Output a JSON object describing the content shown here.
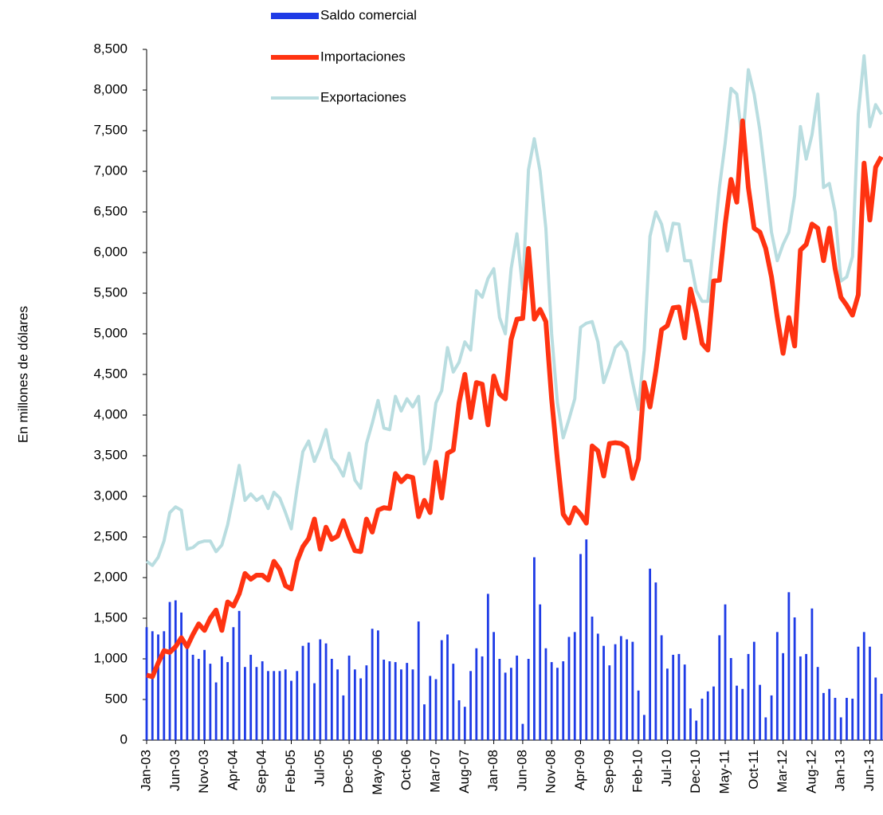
{
  "chart_data": {
    "type": "combo",
    "y_label": "En millones de dólares",
    "categories": [
      "Jan-03",
      null,
      null,
      null,
      null,
      "Jun-03",
      null,
      null,
      null,
      null,
      "Nov-03",
      null,
      null,
      null,
      null,
      "Apr-04",
      null,
      null,
      null,
      null,
      "Sep-04",
      null,
      null,
      null,
      null,
      "Feb-05",
      null,
      null,
      null,
      null,
      "Jul-05",
      null,
      null,
      null,
      null,
      "Dec-05",
      null,
      null,
      null,
      null,
      "May-06",
      null,
      null,
      null,
      null,
      "Oct-06",
      null,
      null,
      null,
      null,
      "Mar-07",
      null,
      null,
      null,
      null,
      "Aug-07",
      null,
      null,
      null,
      null,
      "Jan-08",
      null,
      null,
      null,
      null,
      "Jun-08",
      null,
      null,
      null,
      null,
      "Nov-08",
      null,
      null,
      null,
      null,
      "Apr-09",
      null,
      null,
      null,
      null,
      "Sep-09",
      null,
      null,
      null,
      null,
      "Feb-10",
      null,
      null,
      null,
      null,
      "Jul-10",
      null,
      null,
      null,
      null,
      "Dec-10",
      null,
      null,
      null,
      null,
      "May-11",
      null,
      null,
      null,
      null,
      "Oct-11",
      null,
      null,
      null,
      null,
      "Mar-12",
      null,
      null,
      null,
      null,
      "Aug-12",
      null,
      null,
      null,
      null,
      "Jan-13",
      null,
      null,
      null,
      null,
      "Jun-13",
      null,
      null
    ],
    "series": [
      {
        "name": "Saldo comercial",
        "type": "bar",
        "color": "#1e3be6",
        "values": [
          1390,
          1340,
          1300,
          1340,
          1700,
          1720,
          1570,
          1200,
          1050,
          1000,
          1110,
          940,
          710,
          1030,
          960,
          1390,
          1590,
          900,
          1050,
          900,
          970,
          850,
          850,
          850,
          870,
          730,
          850,
          1160,
          1200,
          700,
          1240,
          1190,
          1000,
          870,
          550,
          1040,
          870,
          760,
          920,
          1370,
          1350,
          990,
          970,
          960,
          870,
          950,
          870,
          1460,
          440,
          790,
          750,
          1230,
          1300,
          940,
          490,
          410,
          850,
          1130,
          1030,
          1800,
          1330,
          1000,
          830,
          890,
          1040,
          200,
          1000,
          2250,
          1670,
          1130,
          960,
          890,
          970,
          1270,
          1330,
          2290,
          2470,
          1520,
          1310,
          1160,
          920,
          1180,
          1280,
          1240,
          1210,
          610,
          310,
          2110,
          1940,
          1290,
          880,
          1050,
          1060,
          930,
          390,
          240,
          510,
          600,
          660,
          1290,
          1670,
          1010,
          670,
          630,
          1060,
          1210,
          680,
          280,
          550,
          1330,
          1070,
          1820,
          1510,
          1030,
          1060,
          1620,
          900,
          580,
          630,
          520,
          280,
          520,
          510,
          1150,
          1330,
          1150,
          770,
          570
        ]
      },
      {
        "name": "Importaciones",
        "type": "line",
        "color": "#ff3311",
        "values": [
          800,
          780,
          950,
          1100,
          1080,
          1150,
          1260,
          1150,
          1300,
          1430,
          1350,
          1500,
          1600,
          1350,
          1700,
          1650,
          1800,
          2050,
          1980,
          2030,
          2030,
          1970,
          2200,
          2100,
          1900,
          1860,
          2200,
          2380,
          2480,
          2720,
          2350,
          2620,
          2470,
          2510,
          2700,
          2500,
          2330,
          2320,
          2720,
          2560,
          2830,
          2860,
          2850,
          3280,
          3180,
          3250,
          3230,
          2750,
          2950,
          2800,
          3420,
          2980,
          3530,
          3570,
          4150,
          4500,
          3970,
          4400,
          4380,
          3880,
          4480,
          4260,
          4200,
          4930,
          5180,
          5190,
          6050,
          5180,
          5300,
          5150,
          4200,
          3450,
          2780,
          2670,
          2860,
          2780,
          2670,
          3620,
          3560,
          3250,
          3650,
          3660,
          3650,
          3600,
          3220,
          3460,
          4400,
          4100,
          4540,
          5050,
          5100,
          5320,
          5330,
          4950,
          5550,
          5260,
          4880,
          4800,
          5650,
          5660,
          6350,
          6900,
          6620,
          7620,
          6800,
          6300,
          6250,
          6050,
          5700,
          5200,
          4760,
          5200,
          4850,
          6030,
          6100,
          6350,
          6300,
          5900,
          6300,
          5800,
          5450,
          5350,
          5230,
          5480,
          7100,
          6400,
          7050,
          7180
        ]
      },
      {
        "name": "Exportaciones",
        "type": "line",
        "color": "#b9dde0",
        "values": [
          2200,
          2150,
          2250,
          2450,
          2800,
          2870,
          2830,
          2350,
          2370,
          2430,
          2450,
          2450,
          2320,
          2400,
          2650,
          3000,
          3380,
          2950,
          3030,
          2950,
          3000,
          2850,
          3050,
          2980,
          2800,
          2600,
          3100,
          3550,
          3680,
          3430,
          3600,
          3820,
          3470,
          3380,
          3250,
          3530,
          3200,
          3100,
          3650,
          3900,
          4180,
          3840,
          3820,
          4230,
          4050,
          4200,
          4100,
          4230,
          3400,
          3580,
          4150,
          4300,
          4830,
          4530,
          4650,
          4900,
          4800,
          5530,
          5450,
          5680,
          5800,
          5200,
          5000,
          5800,
          6230,
          5550,
          7020,
          7400,
          7000,
          6300,
          5000,
          4150,
          3720,
          3950,
          4200,
          5080,
          5130,
          5150,
          4900,
          4400,
          4600,
          4830,
          4900,
          4780,
          4400,
          4070,
          4800,
          6200,
          6500,
          6350,
          6020,
          6360,
          6350,
          5900,
          5900,
          5530,
          5400,
          5400,
          6100,
          6800,
          7350,
          8020,
          7950,
          7350,
          8250,
          7950,
          7500,
          6900,
          6250,
          5900,
          6100,
          6250,
          6700,
          7550,
          7150,
          7450,
          7950,
          6800,
          6850,
          6500,
          5650,
          5700,
          5950,
          7700,
          8420,
          7550,
          7820,
          7700
        ]
      }
    ],
    "ylim": [
      0,
      8500
    ],
    "yticks": [
      0,
      500,
      {
        "value": 1000,
        "label": "1,000"
      },
      {
        "value": 1500,
        "label": "1,500"
      },
      {
        "value": 2000,
        "label": "2,000"
      },
      {
        "value": 2500,
        "label": "2,500"
      },
      {
        "value": 3000,
        "label": "3,000"
      },
      {
        "value": 3500,
        "label": "3,500"
      },
      {
        "value": 4000,
        "label": "4,000"
      },
      {
        "value": 4500,
        "label": "4,500"
      },
      {
        "value": 5000,
        "label": "5,000"
      },
      {
        "value": 5500,
        "label": "5,500"
      },
      {
        "value": 6000,
        "label": "6,000"
      },
      {
        "value": 6500,
        "label": "6,500"
      },
      {
        "value": 7000,
        "label": "7,000"
      },
      {
        "value": 7500,
        "label": "7,500"
      },
      {
        "value": 8000,
        "label": "8,000"
      },
      {
        "value": 8500,
        "label": "8,500"
      }
    ],
    "grid": false,
    "legend": "top"
  }
}
